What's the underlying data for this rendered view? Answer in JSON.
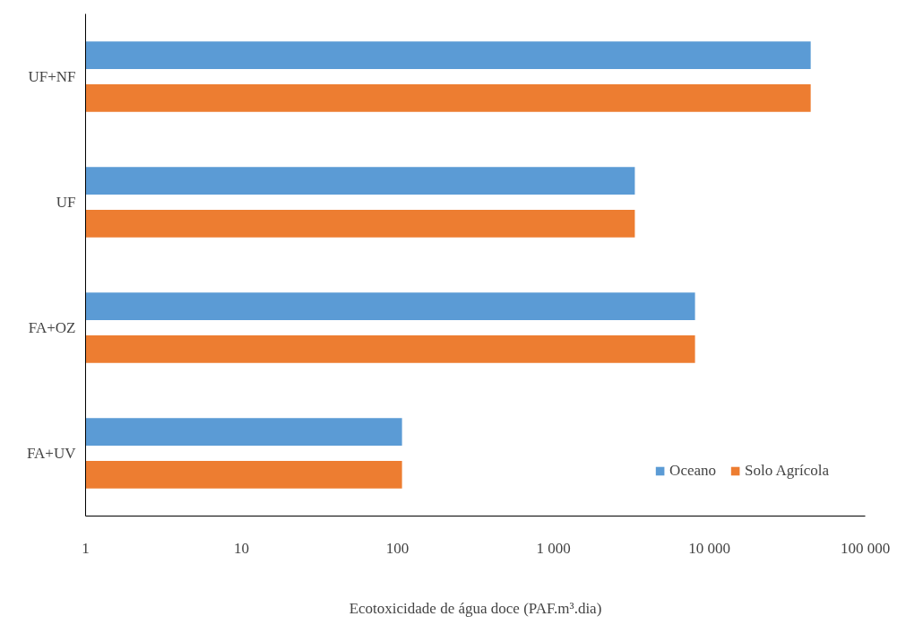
{
  "chart_data": {
    "type": "bar",
    "orientation": "horizontal",
    "log": "x",
    "xlabel": "Ecotoxicidade de água doce (PAF.m³.dia)",
    "categories": [
      "UF+NF",
      "UF",
      "FA+OZ",
      "FA+UV"
    ],
    "series": [
      {
        "name": "Oceano",
        "color": "#5b9bd5",
        "values": [
          44700,
          3330,
          8100,
          107
        ]
      },
      {
        "name": "Solo Agrícola",
        "color": "#ed7d31",
        "values": [
          44700,
          3330,
          8100,
          107
        ]
      }
    ],
    "xlim": [
      1,
      100000
    ],
    "xticks": [
      1,
      10,
      100,
      {
        "value": 1000,
        "label": "1 000"
      },
      {
        "value": 10000,
        "label": "10 000"
      },
      {
        "value": 100000,
        "label": "100 000"
      }
    ],
    "grid": false,
    "legend": "bottom right"
  }
}
